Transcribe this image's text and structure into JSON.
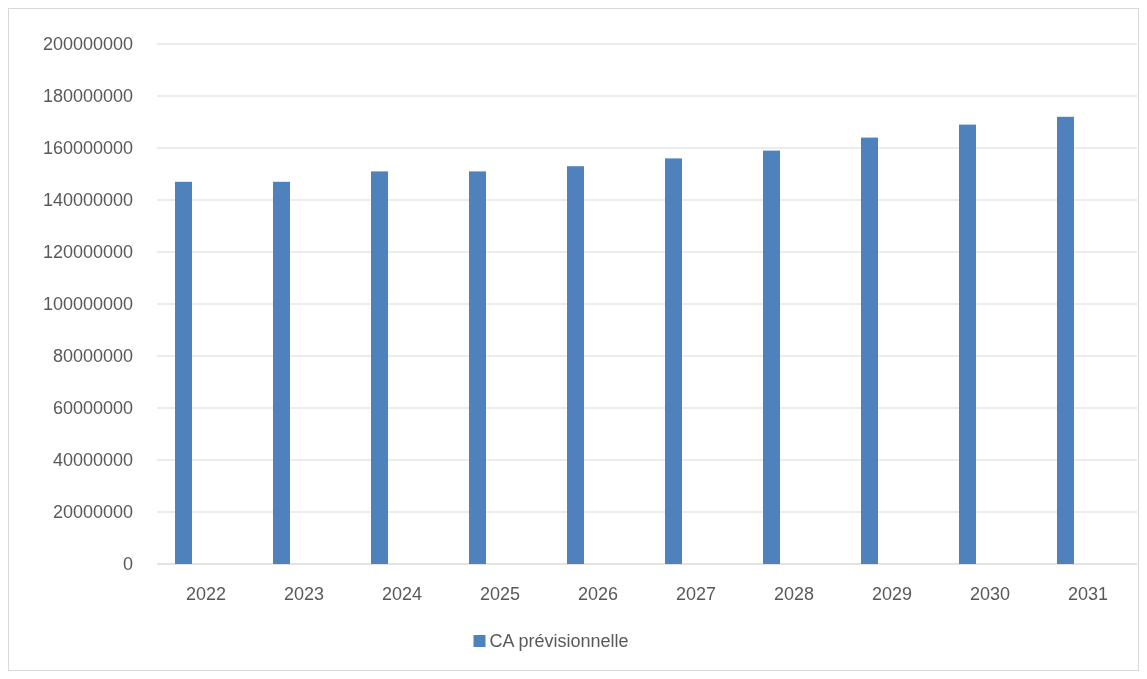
{
  "chart_data": {
    "type": "bar",
    "categories": [
      "2022",
      "2023",
      "2024",
      "2025",
      "2026",
      "2027",
      "2028",
      "2029",
      "2030",
      "2031"
    ],
    "series": [
      {
        "name": "CA prévisionnelle",
        "color": "#4f81bd",
        "values": [
          147000000,
          147000000,
          151000000,
          151000000,
          153000000,
          156000000,
          159000000,
          164000000,
          169000000,
          172000000
        ]
      }
    ],
    "ylim": [
      0,
      200000000
    ],
    "yticks": [
      0,
      20000000,
      40000000,
      60000000,
      80000000,
      100000000,
      120000000,
      140000000,
      160000000,
      180000000,
      200000000
    ],
    "grid": "y",
    "legend": "bottom"
  }
}
